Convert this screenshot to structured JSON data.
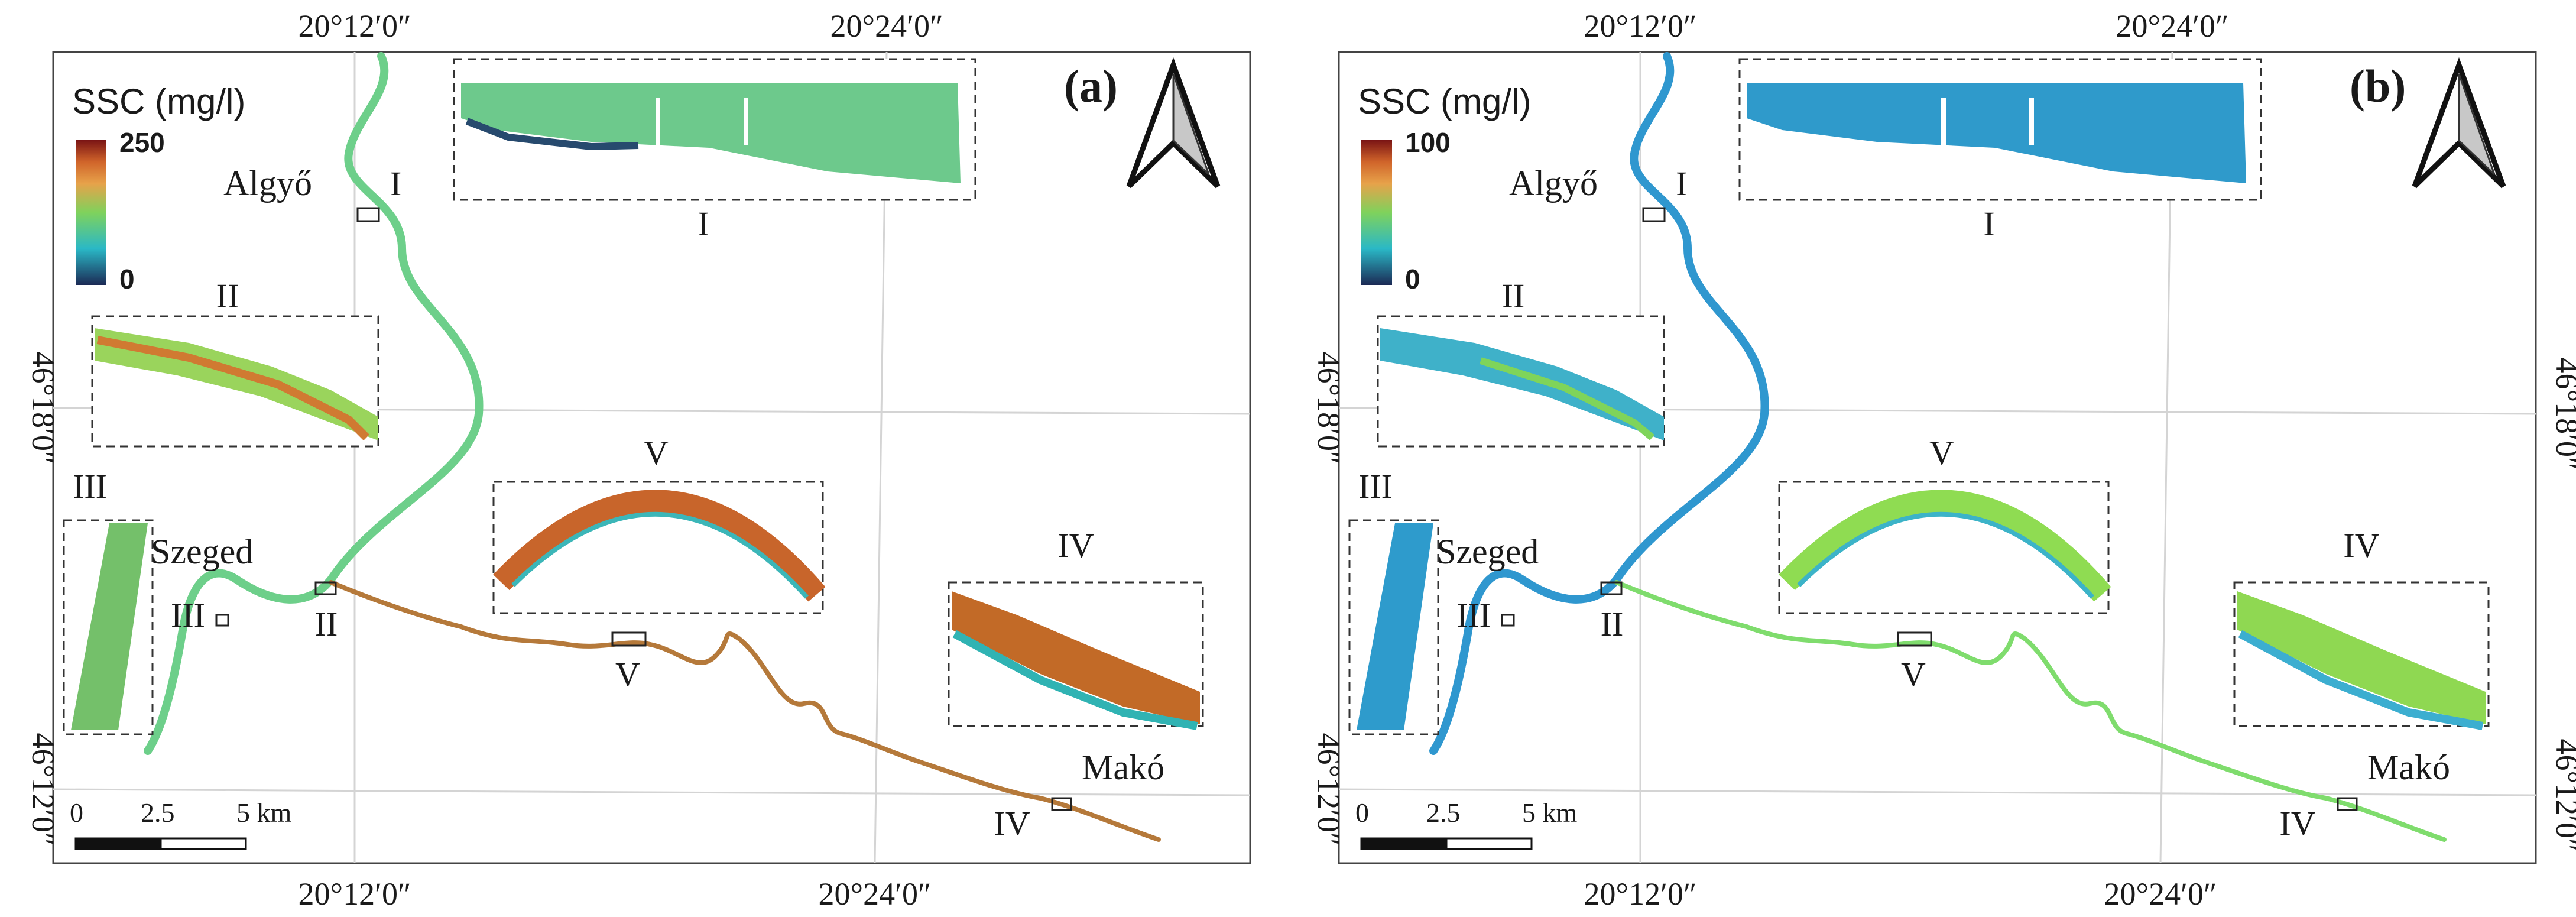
{
  "figure": {
    "type": "map",
    "region": "Maros/Tisza rivers near Szeged"
  },
  "colors": {
    "ramp": [
      "#1c2a55",
      "#2ab8c6",
      "#7fd25c",
      "#e7a24a",
      "#d0642a",
      "#7a1414"
    ],
    "panel_a_river": "#6dcf8a",
    "panel_a_maros": "#b5793a",
    "panel_b_river": "#2f97cf",
    "panel_b_maros": "#7fdc6d",
    "grid": "#d4d4d4",
    "frame": "#444444"
  },
  "coordinates": {
    "lon_left": "20°12′0″",
    "lon_right": "20°24′0″",
    "lat_upper": "46°18′0″",
    "lat_lower": "46°12′0″"
  },
  "places": {
    "algyo": "Algyő",
    "szeged": "Szeged",
    "mako": "Makó"
  },
  "scale_bar": {
    "labels": [
      "0",
      "2.5",
      "5 km"
    ]
  },
  "insets": [
    "I",
    "II",
    "III",
    "IV",
    "V"
  ],
  "panels": [
    {
      "label": "(a)",
      "legend_title": "SSC (mg/l)",
      "legend_max": "250",
      "legend_min": "0"
    },
    {
      "label": "(b)",
      "legend_title": "SSC (mg/l)",
      "legend_max": "100",
      "legend_min": "0"
    }
  ]
}
